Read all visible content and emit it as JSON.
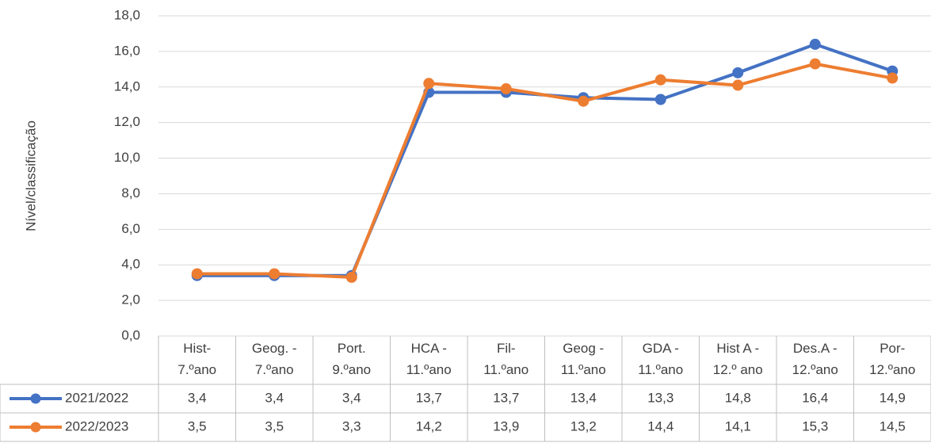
{
  "chart_data": {
    "type": "line",
    "y_axis_label": "Nível/classificação",
    "categories": [
      "Hist-\n7.ºano",
      "Geog. -\n7.ºano",
      "Port.\n9.ºano",
      "HCA -\n11.ºano",
      "Fil-\n11.ºano",
      "Geog -\n11.ºano",
      "GDA -\n11.ºano",
      "Hist A -\n12.º ano",
      "Des.A -\n12.ºano",
      "Por-\n12.ºano"
    ],
    "series": [
      {
        "name": "2021/2022",
        "color": "#4472c4",
        "values": [
          3.4,
          3.4,
          3.4,
          13.7,
          13.7,
          13.4,
          13.3,
          14.8,
          16.4,
          14.9
        ],
        "value_labels": [
          "3,4",
          "3,4",
          "3,4",
          "13,7",
          "13,7",
          "13,4",
          "13,3",
          "14,8",
          "16,4",
          "14,9"
        ]
      },
      {
        "name": "2022/2023",
        "color": "#ed7d31",
        "values": [
          3.5,
          3.5,
          3.3,
          14.2,
          13.9,
          13.2,
          14.4,
          14.1,
          15.3,
          14.5
        ],
        "value_labels": [
          "3,5",
          "3,5",
          "3,3",
          "14,2",
          "13,9",
          "13,2",
          "14,4",
          "14,1",
          "15,3",
          "14,5"
        ]
      }
    ],
    "ylim": [
      0,
      18
    ],
    "yticks": [
      {
        "value": 0,
        "label": "0,0"
      },
      {
        "value": 2,
        "label": "2,0"
      },
      {
        "value": 4,
        "label": "4,0"
      },
      {
        "value": 6,
        "label": "6,0"
      },
      {
        "value": 8,
        "label": "8,0"
      },
      {
        "value": 10,
        "label": "10,0"
      },
      {
        "value": 12,
        "label": "12,0"
      },
      {
        "value": 14,
        "label": "14,0"
      },
      {
        "value": 16,
        "label": "16,0"
      },
      {
        "value": 18,
        "label": "18,0"
      }
    ],
    "grid": true
  }
}
